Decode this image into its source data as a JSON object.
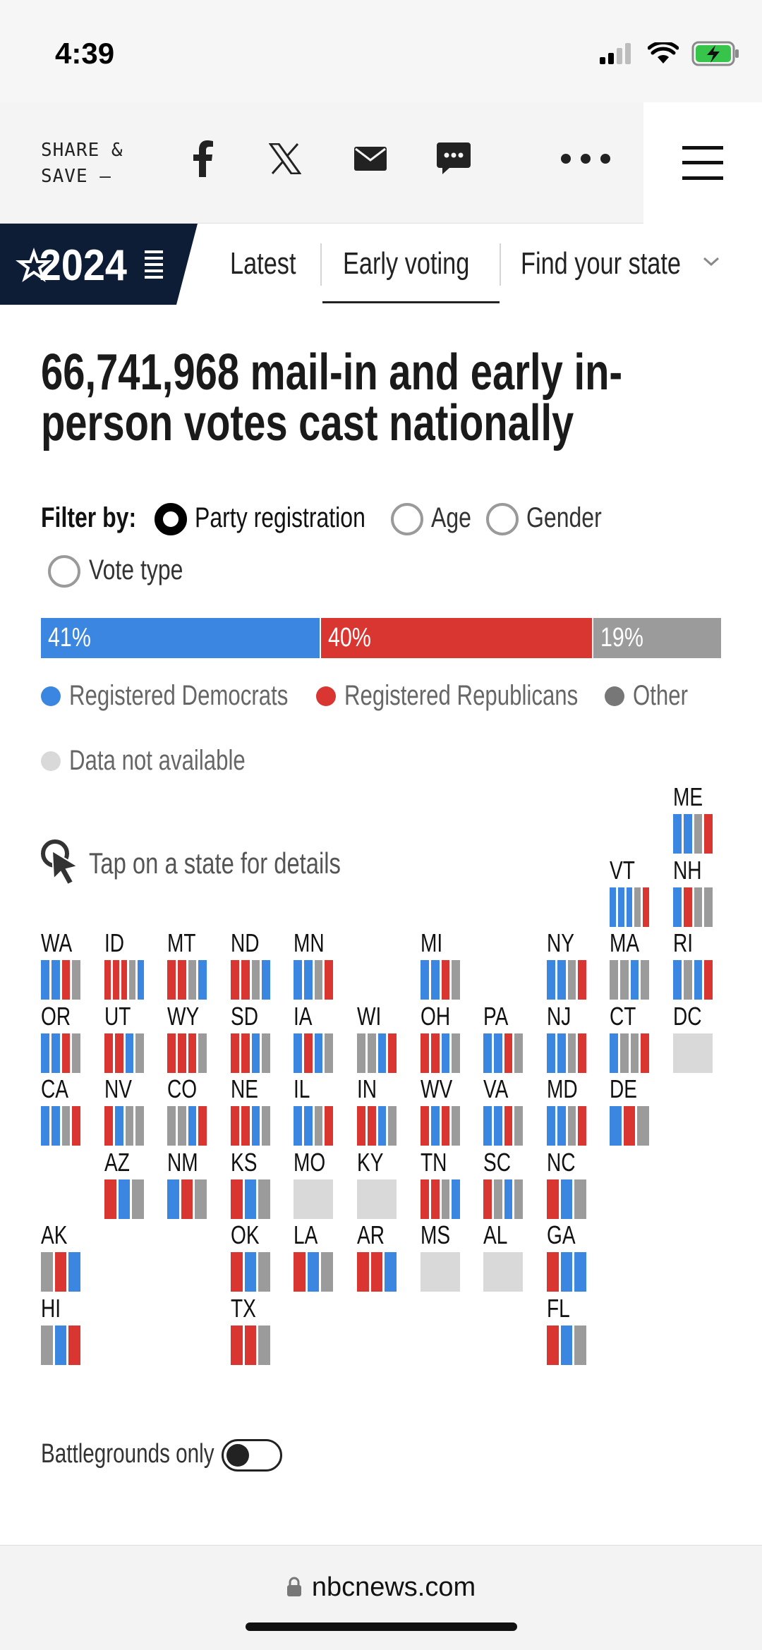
{
  "status_bar": {
    "time": "4:39"
  },
  "share_bar": {
    "label_line1": "SHARE &",
    "label_line2": "SAVE —",
    "icons": [
      "facebook-icon",
      "x-icon",
      "email-icon",
      "message-icon",
      "more-icon",
      "hamburger-menu-icon"
    ]
  },
  "nav": {
    "logo_text": "2024",
    "items": [
      "Latest",
      "Early voting",
      "Find your state"
    ],
    "active": "Early voting"
  },
  "headline": {
    "line1": "66,741,968 mail-in and early in-",
    "line2": "person votes cast nationally"
  },
  "filter": {
    "label": "Filter by:",
    "options": [
      "Party registration",
      "Age",
      "Gender",
      "Vote type"
    ],
    "selected": "Party registration"
  },
  "national_bar": [
    {
      "label": "41%",
      "value": 41,
      "color": "#3a86e0"
    },
    {
      "label": "40%",
      "value": 40,
      "color": "#d93632"
    },
    {
      "label": "19%",
      "value": 19,
      "color": "#9b9b9b"
    }
  ],
  "legend": {
    "dem": "Registered Democrats",
    "rep": "Registered Republicans",
    "other": "Other",
    "na": "Data not available"
  },
  "colors": {
    "dem": "#3a86e0",
    "rep": "#d93632",
    "other": "#9b9b9b",
    "na": "#d9d9d9"
  },
  "tap_hint": "Tap on a state for details",
  "states": [
    {
      "abbr": "ME",
      "col": 10,
      "row": 0,
      "bars": [
        "d",
        "d",
        "o",
        "r"
      ]
    },
    {
      "abbr": "VT",
      "col": 9,
      "row": 1,
      "bars": [
        "d",
        "d",
        "d",
        "o",
        "r"
      ]
    },
    {
      "abbr": "NH",
      "col": 10,
      "row": 1,
      "bars": [
        "d",
        "r",
        "o",
        "o"
      ]
    },
    {
      "abbr": "WA",
      "col": 0,
      "row": 2,
      "bars": [
        "d",
        "d",
        "r",
        "o"
      ]
    },
    {
      "abbr": "ID",
      "col": 1,
      "row": 2,
      "bars": [
        "r",
        "r",
        "r",
        "o",
        "d"
      ]
    },
    {
      "abbr": "MT",
      "col": 2,
      "row": 2,
      "bars": [
        "r",
        "r",
        "o",
        "d"
      ]
    },
    {
      "abbr": "ND",
      "col": 3,
      "row": 2,
      "bars": [
        "r",
        "r",
        "o",
        "d"
      ]
    },
    {
      "abbr": "MN",
      "col": 4,
      "row": 2,
      "bars": [
        "d",
        "d",
        "o",
        "r"
      ]
    },
    {
      "abbr": "MI",
      "col": 6,
      "row": 2,
      "bars": [
        "d",
        "d",
        "r",
        "o"
      ]
    },
    {
      "abbr": "NY",
      "col": 8,
      "row": 2,
      "bars": [
        "d",
        "d",
        "o",
        "r"
      ]
    },
    {
      "abbr": "MA",
      "col": 9,
      "row": 2,
      "bars": [
        "o",
        "o",
        "d",
        "o"
      ]
    },
    {
      "abbr": "RI",
      "col": 10,
      "row": 2,
      "bars": [
        "d",
        "o",
        "d",
        "r"
      ]
    },
    {
      "abbr": "OR",
      "col": 0,
      "row": 3,
      "bars": [
        "d",
        "d",
        "r",
        "o"
      ]
    },
    {
      "abbr": "UT",
      "col": 1,
      "row": 3,
      "bars": [
        "r",
        "r",
        "d",
        "o"
      ]
    },
    {
      "abbr": "WY",
      "col": 2,
      "row": 3,
      "bars": [
        "r",
        "r",
        "r",
        "o"
      ]
    },
    {
      "abbr": "SD",
      "col": 3,
      "row": 3,
      "bars": [
        "r",
        "r",
        "d",
        "o"
      ]
    },
    {
      "abbr": "IA",
      "col": 4,
      "row": 3,
      "bars": [
        "d",
        "r",
        "d",
        "o"
      ]
    },
    {
      "abbr": "WI",
      "col": 5,
      "row": 3,
      "bars": [
        "o",
        "o",
        "d",
        "r"
      ]
    },
    {
      "abbr": "OH",
      "col": 6,
      "row": 3,
      "bars": [
        "r",
        "r",
        "d",
        "o"
      ]
    },
    {
      "abbr": "PA",
      "col": 7,
      "row": 3,
      "bars": [
        "d",
        "d",
        "r",
        "o"
      ]
    },
    {
      "abbr": "NJ",
      "col": 8,
      "row": 3,
      "bars": [
        "d",
        "d",
        "o",
        "r"
      ]
    },
    {
      "abbr": "CT",
      "col": 9,
      "row": 3,
      "bars": [
        "d",
        "o",
        "o",
        "r"
      ]
    },
    {
      "abbr": "DC",
      "col": 10,
      "row": 3,
      "bars": [
        "n"
      ]
    },
    {
      "abbr": "CA",
      "col": 0,
      "row": 4,
      "bars": [
        "d",
        "d",
        "o",
        "r"
      ]
    },
    {
      "abbr": "NV",
      "col": 1,
      "row": 4,
      "bars": [
        "r",
        "d",
        "o",
        "o"
      ]
    },
    {
      "abbr": "CO",
      "col": 2,
      "row": 4,
      "bars": [
        "o",
        "o",
        "d",
        "r"
      ]
    },
    {
      "abbr": "NE",
      "col": 3,
      "row": 4,
      "bars": [
        "r",
        "r",
        "d",
        "o"
      ]
    },
    {
      "abbr": "IL",
      "col": 4,
      "row": 4,
      "bars": [
        "d",
        "d",
        "o",
        "r"
      ]
    },
    {
      "abbr": "IN",
      "col": 5,
      "row": 4,
      "bars": [
        "r",
        "r",
        "d",
        "o"
      ]
    },
    {
      "abbr": "WV",
      "col": 6,
      "row": 4,
      "bars": [
        "r",
        "d",
        "r",
        "o"
      ]
    },
    {
      "abbr": "VA",
      "col": 7,
      "row": 4,
      "bars": [
        "d",
        "d",
        "r",
        "o"
      ]
    },
    {
      "abbr": "MD",
      "col": 8,
      "row": 4,
      "bars": [
        "d",
        "d",
        "o",
        "r"
      ]
    },
    {
      "abbr": "DE",
      "col": 9,
      "row": 4,
      "bars": [
        "d",
        "r",
        "o"
      ]
    },
    {
      "abbr": "AZ",
      "col": 1,
      "row": 5,
      "bars": [
        "r",
        "d",
        "o"
      ]
    },
    {
      "abbr": "NM",
      "col": 2,
      "row": 5,
      "bars": [
        "d",
        "r",
        "o"
      ]
    },
    {
      "abbr": "KS",
      "col": 3,
      "row": 5,
      "bars": [
        "r",
        "d",
        "o"
      ]
    },
    {
      "abbr": "MO",
      "col": 4,
      "row": 5,
      "bars": [
        "n"
      ]
    },
    {
      "abbr": "KY",
      "col": 5,
      "row": 5,
      "bars": [
        "n"
      ]
    },
    {
      "abbr": "TN",
      "col": 6,
      "row": 5,
      "bars": [
        "r",
        "r",
        "o",
        "d"
      ]
    },
    {
      "abbr": "SC",
      "col": 7,
      "row": 5,
      "bars": [
        "r",
        "o",
        "d",
        "o"
      ]
    },
    {
      "abbr": "NC",
      "col": 8,
      "row": 5,
      "bars": [
        "r",
        "d",
        "o"
      ]
    },
    {
      "abbr": "AK",
      "col": 0,
      "row": 6,
      "bars": [
        "o",
        "r",
        "d"
      ]
    },
    {
      "abbr": "OK",
      "col": 3,
      "row": 6,
      "bars": [
        "r",
        "d",
        "o"
      ]
    },
    {
      "abbr": "LA",
      "col": 4,
      "row": 6,
      "bars": [
        "r",
        "d",
        "o"
      ]
    },
    {
      "abbr": "AR",
      "col": 5,
      "row": 6,
      "bars": [
        "r",
        "r",
        "d"
      ]
    },
    {
      "abbr": "MS",
      "col": 6,
      "row": 6,
      "bars": [
        "n"
      ]
    },
    {
      "abbr": "AL",
      "col": 7,
      "row": 6,
      "bars": [
        "n"
      ]
    },
    {
      "abbr": "GA",
      "col": 8,
      "row": 6,
      "bars": [
        "r",
        "d",
        "d"
      ]
    },
    {
      "abbr": "HI",
      "col": 0,
      "row": 7,
      "bars": [
        "o",
        "d",
        "r"
      ]
    },
    {
      "abbr": "TX",
      "col": 3,
      "row": 7,
      "bars": [
        "r",
        "r",
        "o"
      ]
    },
    {
      "abbr": "FL",
      "col": 8,
      "row": 7,
      "bars": [
        "r",
        "d",
        "o"
      ]
    }
  ],
  "battlegrounds": {
    "label": "Battlegrounds only",
    "enabled": false
  },
  "url_bar": {
    "url": "nbcnews.com"
  }
}
